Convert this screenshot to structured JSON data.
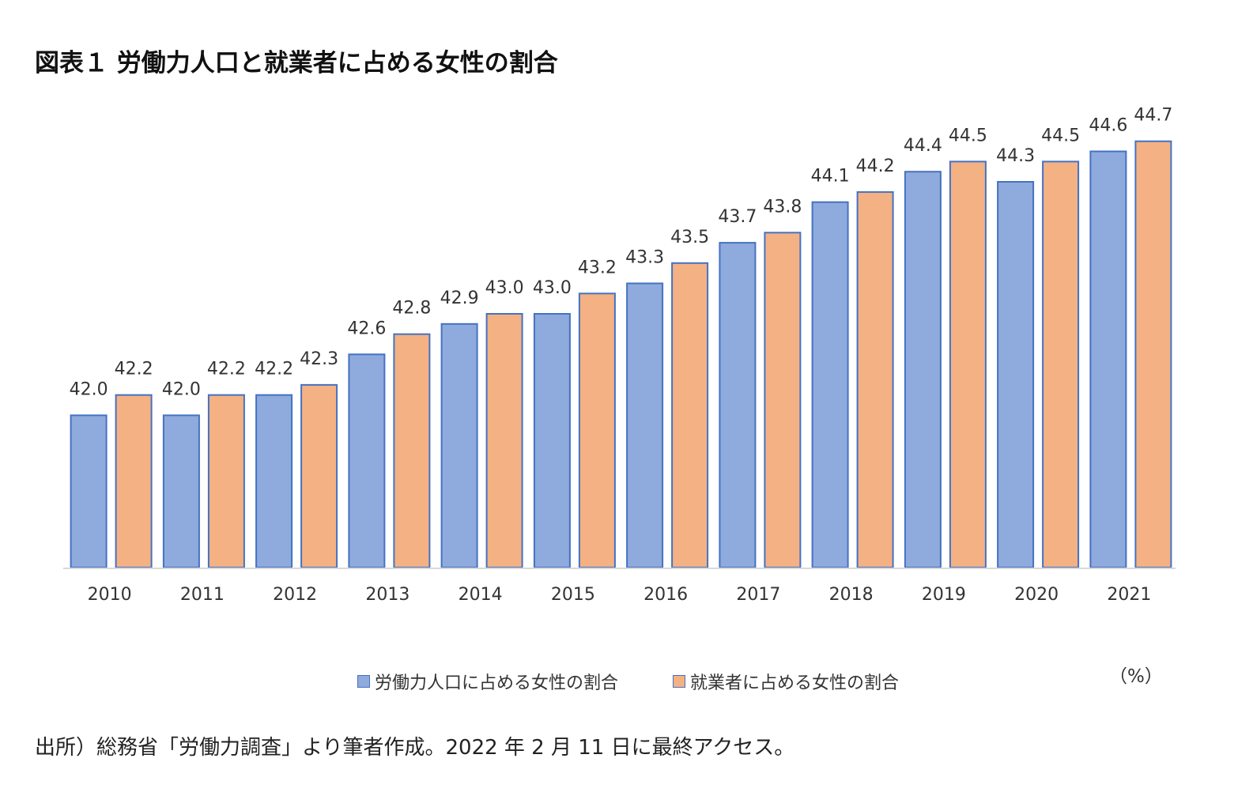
{
  "title": "図表１ 労働力人口と就業者に占める女性の割合",
  "unit": "（%）",
  "source": "出所）総務省「労働力調査」より筆者作成。2022 年 2 月 11 日に最終アクセス。",
  "colors": {
    "series1": "#8faadc",
    "series2": "#f4b183",
    "bar_border": "#4472c4",
    "axis": "#d9d9d9"
  },
  "legend": [
    {
      "label": "労働力人口に占める女性の割合",
      "color": "#8faadc"
    },
    {
      "label": "就業者に占める女性の割合",
      "color": "#f4b183"
    }
  ],
  "chart_data": {
    "type": "bar",
    "categories": [
      "2010",
      "2011",
      "2012",
      "2013",
      "2014",
      "2015",
      "2016",
      "2017",
      "2018",
      "2019",
      "2020",
      "2021"
    ],
    "series": [
      {
        "name": "労働力人口に占める女性の割合",
        "values": [
          42.0,
          42.0,
          42.2,
          42.6,
          42.9,
          43.0,
          43.3,
          43.7,
          44.1,
          44.4,
          44.3,
          44.6
        ]
      },
      {
        "name": "就業者に占める女性の割合",
        "values": [
          42.2,
          42.2,
          42.3,
          42.8,
          43.0,
          43.2,
          43.5,
          43.8,
          44.2,
          44.5,
          44.5,
          44.7
        ]
      }
    ],
    "ylim": [
      40.5,
      44.9
    ],
    "data_labels": true,
    "gridlines": false,
    "legend_position": "bottom"
  }
}
